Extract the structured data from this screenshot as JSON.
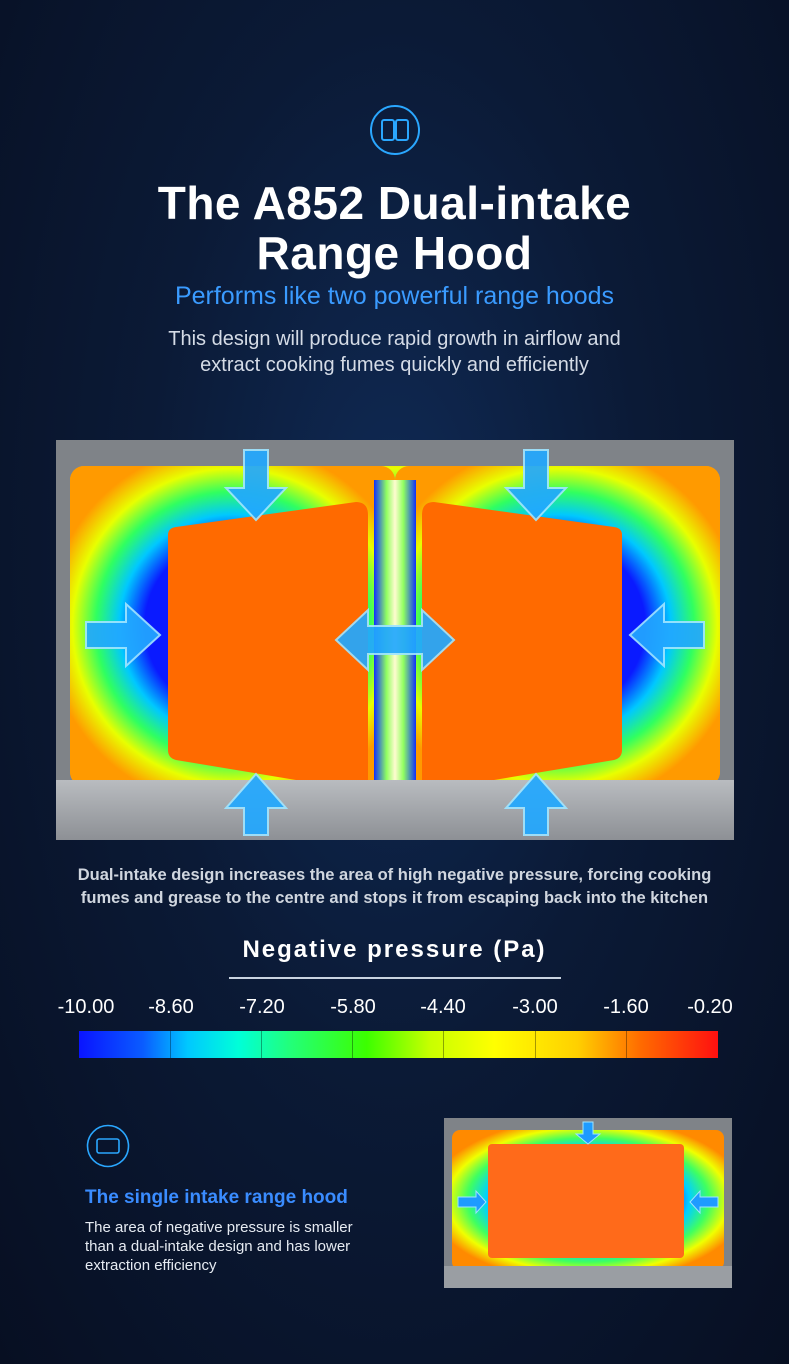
{
  "header": {
    "title_line1": "The A852 Dual-intake",
    "title_line2": "Range Hood",
    "subtitle": "Performs like two powerful range hoods",
    "description_line1": "This design will produce rapid growth in airflow and",
    "description_line2": "extract cooking fumes quickly and efficiently",
    "icon": "book-icon"
  },
  "caption": {
    "line1": "Dual-intake design increases the area of high negative pressure, forcing cooking",
    "line2": "fumes and grease to the centre and stops it from escaping back into the kitchen"
  },
  "legend": {
    "title": "Negative pressure (Pa)",
    "ticks": [
      "-10.00",
      "-8.60",
      "-7.20",
      "-5.80",
      "-4.40",
      "-3.00",
      "-1.60",
      "-0.20"
    ]
  },
  "single": {
    "icon": "rectangle-icon",
    "title": "The single intake range hood",
    "description_line1": "The area of negative pressure is smaller",
    "description_line2": "than a dual-intake design and has lower",
    "description_line3": "extraction efficiency"
  },
  "colors": {
    "accent_blue": "#3a9bff",
    "background": "#0b1a36"
  }
}
